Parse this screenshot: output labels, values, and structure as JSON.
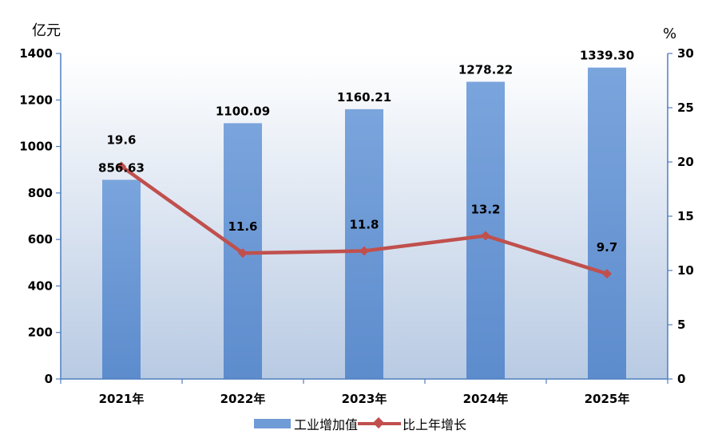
{
  "chart_data": {
    "type": "bar+line",
    "categories": [
      "2021年",
      "2022年",
      "2023年",
      "2024年",
      "2025年"
    ],
    "series": [
      {
        "name": "工业增加值",
        "type": "bar",
        "axis": "left",
        "values": [
          856.63,
          1100.09,
          1160.21,
          1278.22,
          1339.3
        ],
        "labels": [
          "856.63",
          "1100.09",
          "1160.21",
          "1278.22",
          "1339.30"
        ],
        "color": "#6f9bd7"
      },
      {
        "name": "比上年增长",
        "type": "line",
        "axis": "right",
        "values": [
          19.6,
          11.6,
          11.8,
          13.2,
          9.7
        ],
        "labels": [
          "19.6",
          "11.6",
          "11.8",
          "13.2",
          "9.7"
        ],
        "color": "#c0504d"
      }
    ],
    "left_axis": {
      "unit": "亿元",
      "ylim": [
        0,
        1400
      ],
      "ticks": [
        "0",
        "200",
        "400",
        "600",
        "800",
        "1000",
        "1200",
        "1400"
      ]
    },
    "right_axis": {
      "unit": "%",
      "ylim": [
        0,
        30
      ],
      "ticks": [
        "0",
        "5",
        "10",
        "15",
        "20",
        "25",
        "30"
      ]
    },
    "legend_position": "bottom",
    "plot_background": "gradient #c7d6ea to #ffffff"
  }
}
